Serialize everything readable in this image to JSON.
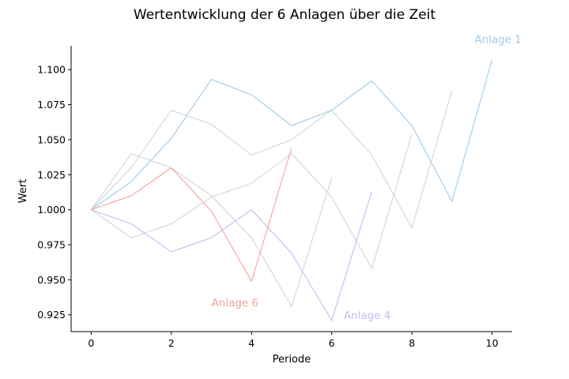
{
  "chart_data": {
    "type": "line",
    "title": "Wertentwicklung der 6 Anlagen über die Zeit",
    "xlabel": "Periode",
    "ylabel": "Wert",
    "xlim": [
      -0.5,
      10.5
    ],
    "ylim": [
      0.913,
      1.117
    ],
    "xticks": [
      0,
      2,
      4,
      6,
      8,
      10
    ],
    "yticks": [
      0.925,
      0.95,
      0.975,
      1.0,
      1.025,
      1.05,
      1.075,
      1.1
    ],
    "ytick_labels": [
      "0.925",
      "0.950",
      "0.975",
      "1.000",
      "1.025",
      "1.050",
      "1.075",
      "1.100"
    ],
    "grid": false,
    "series": [
      {
        "color": "#d3d3d3",
        "x": [
          0,
          1,
          2,
          3,
          4,
          5,
          6,
          7,
          8,
          9
        ],
        "values": [
          1.0,
          1.03,
          1.071,
          1.061,
          1.039,
          1.05,
          1.071,
          1.039,
          0.987,
          1.085
        ]
      },
      {
        "color": "#d3d3d3",
        "x": [
          0,
          1,
          2,
          3,
          4,
          5,
          6
        ],
        "values": [
          1.0,
          1.04,
          1.03,
          1.01,
          0.98,
          0.931,
          1.023
        ]
      },
      {
        "color": "#d3d3d3",
        "x": [
          0,
          1,
          2,
          3,
          4,
          5,
          6,
          7,
          8
        ],
        "values": [
          1.0,
          0.98,
          0.99,
          1.009,
          1.019,
          1.04,
          1.009,
          0.958,
          1.054
        ]
      },
      {
        "name": "Anlage 1",
        "color": "#9ecae9",
        "x": [
          0,
          1,
          2,
          3,
          4,
          5,
          6,
          7,
          8,
          9,
          10
        ],
        "values": [
          1.0,
          1.02,
          1.051,
          1.093,
          1.082,
          1.06,
          1.071,
          1.092,
          1.06,
          1.006,
          1.107
        ]
      },
      {
        "name": "Anlage 4",
        "color": "#c9b8f5",
        "x": [
          0,
          1,
          2,
          3,
          4,
          5,
          6,
          7
        ],
        "values": [
          1.0,
          0.99,
          0.97,
          0.98,
          1.0,
          0.969,
          0.921,
          1.013
        ]
      },
      {
        "name": "Anlage 6",
        "color": "#f4a09a",
        "x": [
          0,
          1,
          2,
          3,
          4,
          5
        ],
        "values": [
          1.0,
          1.01,
          1.03,
          0.999,
          0.949,
          1.044
        ]
      }
    ],
    "annotations": [
      {
        "text": "Anlage 1",
        "x": 10.15,
        "y": 1.119,
        "color": "#9ecae9",
        "anchor": "middle"
      },
      {
        "text": "Anlage 6",
        "x": 3.0,
        "y": 0.931,
        "color": "#f4a09a",
        "anchor": "start"
      },
      {
        "text": "Anlage 4",
        "x": 6.3,
        "y": 0.922,
        "color": "#c9b8f5",
        "anchor": "start"
      }
    ]
  }
}
